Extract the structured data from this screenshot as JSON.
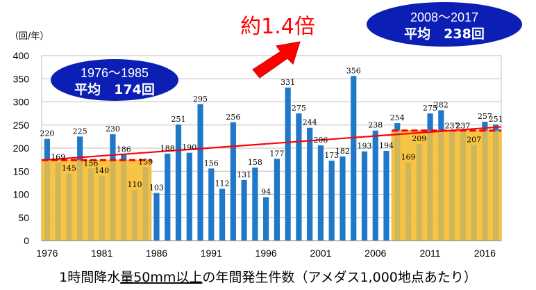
{
  "chart_data": {
    "type": "bar",
    "caption_parts": [
      "1時間降水",
      "量",
      "50mm以上",
      "の年間発生件数（アメダス1,000地点あたり）"
    ],
    "y_unit": "（回/年）",
    "ylim": [
      0,
      400
    ],
    "y_ticks": [
      0,
      50,
      100,
      150,
      200,
      250,
      300,
      350,
      400
    ],
    "x_tick_labels": [
      "1976",
      "1981",
      "1986",
      "1991",
      "1996",
      "2001",
      "2006",
      "2011",
      "2016"
    ],
    "grid": true,
    "years": [
      1976,
      1977,
      1978,
      1979,
      1980,
      1981,
      1982,
      1983,
      1984,
      1985,
      1986,
      1987,
      1988,
      1989,
      1990,
      1991,
      1992,
      1993,
      1994,
      1995,
      1996,
      1997,
      1998,
      1999,
      2000,
      2001,
      2002,
      2003,
      2004,
      2005,
      2006,
      2007,
      2008,
      2009,
      2010,
      2011,
      2012,
      2013,
      2014,
      2015,
      2016,
      2017
    ],
    "values": [
      220,
      169,
      145,
      225,
      156,
      140,
      230,
      186,
      110,
      159,
      103,
      188,
      251,
      190,
      295,
      156,
      112,
      256,
      131,
      158,
      94,
      177,
      331,
      275,
      244,
      206,
      173,
      182,
      356,
      193,
      238,
      194,
      254,
      169,
      209,
      275,
      282,
      237,
      237,
      207,
      257,
      251
    ],
    "period_averages": [
      {
        "label_years": "1976～1985",
        "label_avg": "平均　174回",
        "from": 1976,
        "to": 1985,
        "value": 174
      },
      {
        "label_years": "2008～2017",
        "label_avg": "平均　238回",
        "from": 2008,
        "to": 2017,
        "value": 238
      }
    ],
    "trend": {
      "from_year": 1976,
      "from_value": 174,
      "to_year": 2017,
      "to_value": 246
    },
    "annotation": "約1.4倍",
    "colors": {
      "bar": "#1f78c8",
      "highlight": "#f6c342",
      "highlight_edge": "#c8971a",
      "average": "#ff0000",
      "trend": "#ff0000",
      "oval": "#0b1fb5",
      "arrow": "#ff0000"
    }
  }
}
